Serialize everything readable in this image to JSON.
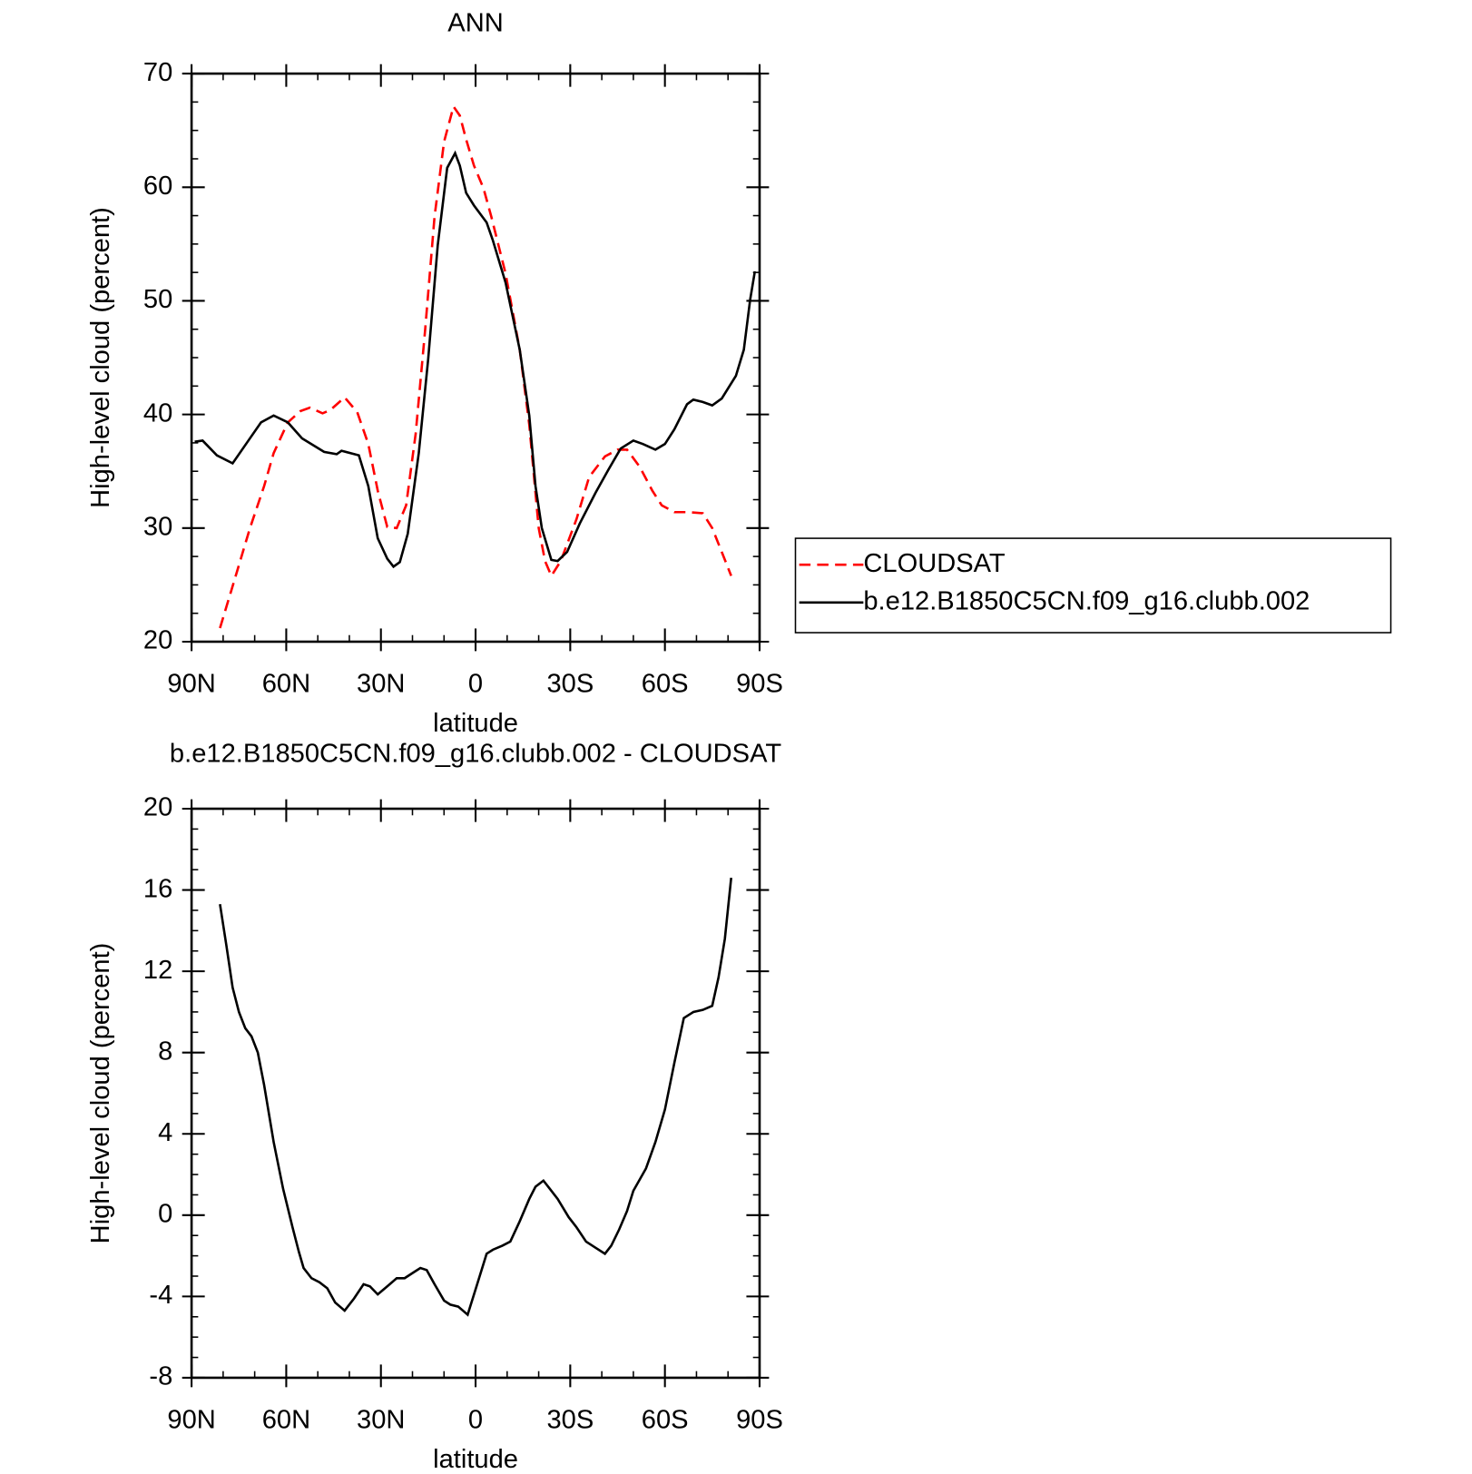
{
  "chart_data": [
    {
      "type": "line",
      "title": "ANN",
      "xlabel": "latitude",
      "ylabel": "High-level cloud (percent)",
      "xlim": [
        90,
        -90
      ],
      "xticks": [
        {
          "value": 90,
          "label": "90N"
        },
        {
          "value": 60,
          "label": "60N"
        },
        {
          "value": 30,
          "label": "30N"
        },
        0,
        {
          "value": -30,
          "label": "30S"
        },
        {
          "value": -60,
          "label": "60S"
        },
        {
          "value": -90,
          "label": "90S"
        }
      ],
      "ylim": [
        20,
        70
      ],
      "yticks": [
        20,
        30,
        40,
        50,
        60,
        70
      ],
      "legend": "right",
      "series": [
        {
          "name": "CLOUDSAT",
          "color": "#ff0000",
          "line_style": "dashed",
          "x": [
            81,
            76,
            71.5,
            67,
            64,
            59.5,
            55.5,
            52.5,
            48.5,
            46,
            41.5,
            37.5,
            34,
            31,
            28,
            25,
            22,
            19,
            16,
            13,
            10,
            7,
            5,
            3,
            0.5,
            -2.5,
            -5,
            -9.5,
            -14,
            -17,
            -20,
            -22,
            -24,
            -27,
            -32,
            -36,
            -41,
            -45,
            -48,
            -52,
            -56,
            -59,
            -63,
            -67.5,
            -72,
            -75,
            -78,
            -81
          ],
          "values": [
            21.2,
            25.8,
            30.0,
            33.7,
            36.6,
            39.3,
            40.3,
            40.6,
            40.1,
            40.4,
            41.5,
            40.2,
            37.4,
            33.3,
            30.1,
            30.0,
            32.0,
            38.3,
            47.4,
            57.4,
            64.0,
            67.1,
            66.3,
            64.2,
            61.9,
            59.9,
            57.4,
            52.4,
            45.7,
            39.1,
            30.0,
            27.1,
            25.8,
            27.1,
            30.8,
            34.5,
            36.3,
            36.9,
            36.9,
            35.4,
            33.3,
            32.0,
            31.4,
            31.4,
            31.3,
            30.0,
            27.9,
            25.8
          ]
        },
        {
          "name": "b.e12.B1850C5CN.f09_g16.clubb.002",
          "color": "#000000",
          "line_style": "solid",
          "x": [
            89,
            86.5,
            82,
            77,
            72,
            68,
            64,
            59.5,
            55,
            48,
            44,
            42.5,
            37,
            34,
            31,
            28,
            26,
            24,
            21.5,
            18,
            15,
            12,
            9,
            6.5,
            5,
            3,
            0.5,
            -3.5,
            -5.5,
            -9.5,
            -14,
            -17,
            -19,
            -21,
            -24,
            -26,
            -29,
            -33,
            -38,
            -42,
            -46,
            -50,
            -53,
            -57,
            -60,
            -63,
            -67,
            -69,
            -72,
            -75,
            -78,
            -82.5,
            -85,
            -87,
            -88.5
          ],
          "values": [
            37.6,
            37.7,
            36.4,
            35.7,
            37.7,
            39.3,
            39.9,
            39.3,
            37.9,
            36.7,
            36.5,
            36.8,
            36.4,
            33.7,
            29.1,
            27.3,
            26.6,
            27.0,
            29.5,
            36.6,
            44.9,
            54.9,
            61.7,
            63.0,
            61.9,
            59.5,
            58.4,
            56.9,
            55.3,
            51.6,
            45.7,
            39.9,
            33.7,
            30.0,
            27.2,
            27.1,
            27.9,
            30.4,
            33.1,
            35.1,
            37.0,
            37.7,
            37.4,
            36.9,
            37.4,
            38.7,
            40.9,
            41.3,
            41.1,
            40.8,
            41.4,
            43.4,
            45.7,
            50.1,
            52.6
          ]
        }
      ]
    },
    {
      "type": "line",
      "title": "b.e12.B1850C5CN.f09_g16.clubb.002 - CLOUDSAT",
      "xlabel": "latitude",
      "ylabel": "High-level cloud (percent)",
      "xlim": [
        90,
        -90
      ],
      "xticks": [
        {
          "value": 90,
          "label": "90N"
        },
        {
          "value": 60,
          "label": "60N"
        },
        {
          "value": 30,
          "label": "30N"
        },
        0,
        {
          "value": -30,
          "label": "30S"
        },
        {
          "value": -60,
          "label": "60S"
        },
        {
          "value": -90,
          "label": "90S"
        }
      ],
      "ylim": [
        -8,
        20
      ],
      "yticks": [
        -8,
        -4,
        0,
        4,
        8,
        12,
        16,
        20
      ],
      "series": [
        {
          "color": "#000000",
          "line_style": "solid",
          "x": [
            81,
            79,
            77,
            75,
            73,
            71,
            69,
            67,
            64,
            61,
            58,
            56,
            54.5,
            52,
            49.5,
            47,
            44.5,
            41.5,
            38.5,
            35.5,
            33.5,
            31,
            28,
            25,
            22.5,
            19.5,
            17.5,
            15.5,
            13,
            10,
            8,
            5.5,
            2.5,
            -0.5,
            -3.5,
            -5.5,
            -8.5,
            -11,
            -14,
            -17,
            -19,
            -21.5,
            -23.5,
            -26,
            -29.5,
            -32,
            -35,
            -38,
            -41,
            -43,
            -45.5,
            -48,
            -50,
            -54,
            -57,
            -60,
            -63,
            -66,
            -69,
            -72,
            -75,
            -77,
            -79,
            -81
          ],
          "values": [
            15.3,
            13.3,
            11.2,
            10.0,
            9.2,
            8.8,
            8.0,
            6.4,
            3.6,
            1.3,
            -0.6,
            -1.8,
            -2.6,
            -3.1,
            -3.3,
            -3.6,
            -4.3,
            -4.7,
            -4.1,
            -3.4,
            -3.5,
            -3.9,
            -3.5,
            -3.1,
            -3.1,
            -2.8,
            -2.6,
            -2.7,
            -3.4,
            -4.2,
            -4.4,
            -4.5,
            -4.9,
            -3.4,
            -1.9,
            -1.7,
            -1.5,
            -1.3,
            -0.3,
            0.8,
            1.4,
            1.7,
            1.3,
            0.8,
            -0.1,
            -0.6,
            -1.3,
            -1.6,
            -1.9,
            -1.5,
            -0.7,
            0.2,
            1.2,
            2.3,
            3.6,
            5.2,
            7.5,
            9.7,
            10.0,
            10.1,
            10.3,
            11.7,
            13.6,
            16.6
          ]
        }
      ]
    }
  ]
}
